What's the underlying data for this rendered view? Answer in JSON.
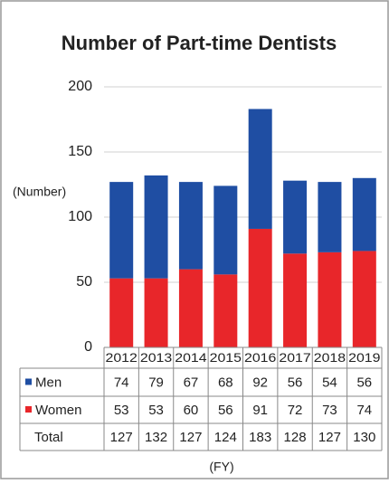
{
  "chart_data": {
    "type": "bar",
    "stacked": true,
    "title": "Number of Part-time Dentists",
    "y_label": "(Number)",
    "x_label": "(FY)",
    "categories": [
      "2012",
      "2013",
      "2014",
      "2015",
      "2016",
      "2017",
      "2018",
      "2019"
    ],
    "series": [
      {
        "name": "Men",
        "color": "#1f4ea3",
        "values": [
          74,
          79,
          67,
          68,
          92,
          56,
          54,
          56
        ]
      },
      {
        "name": "Women",
        "color": "#e8262a",
        "values": [
          53,
          53,
          60,
          56,
          91,
          72,
          73,
          74
        ]
      }
    ],
    "total_label": "Total",
    "totals": [
      127,
      132,
      127,
      124,
      183,
      128,
      127,
      130
    ],
    "ylim": [
      0,
      200
    ],
    "yticks": [
      0,
      50,
      100,
      150,
      200
    ],
    "grid": true
  }
}
